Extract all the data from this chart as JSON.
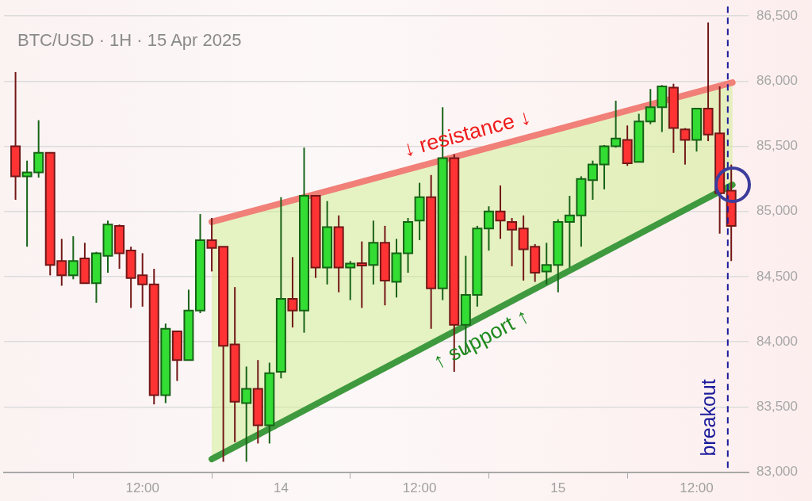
{
  "chart_data": {
    "type": "candlestick",
    "title": "BTC/USD · 1H · 15 Apr 2025",
    "x": [
      "2025-04-13T01:00",
      "2025-04-13T02:00",
      "2025-04-13T03:00",
      "2025-04-13T04:00",
      "2025-04-13T05:00",
      "2025-04-13T06:00",
      "2025-04-13T07:00",
      "2025-04-13T08:00",
      "2025-04-13T09:00",
      "2025-04-13T10:00",
      "2025-04-13T11:00",
      "2025-04-13T12:00",
      "2025-04-13T13:00",
      "2025-04-13T14:00",
      "2025-04-13T15:00",
      "2025-04-13T16:00",
      "2025-04-13T17:00",
      "2025-04-13T18:00",
      "2025-04-13T19:00",
      "2025-04-13T20:00",
      "2025-04-13T21:00",
      "2025-04-13T22:00",
      "2025-04-13T23:00",
      "2025-04-14T00:00",
      "2025-04-14T01:00",
      "2025-04-14T02:00",
      "2025-04-14T03:00",
      "2025-04-14T04:00",
      "2025-04-14T05:00",
      "2025-04-14T06:00",
      "2025-04-14T07:00",
      "2025-04-14T08:00",
      "2025-04-14T09:00",
      "2025-04-14T10:00",
      "2025-04-14T11:00",
      "2025-04-14T12:00",
      "2025-04-14T13:00",
      "2025-04-14T14:00",
      "2025-04-14T15:00",
      "2025-04-14T16:00",
      "2025-04-14T17:00",
      "2025-04-14T18:00",
      "2025-04-14T19:00",
      "2025-04-14T20:00",
      "2025-04-14T21:00",
      "2025-04-14T22:00",
      "2025-04-14T23:00",
      "2025-04-15T00:00",
      "2025-04-15T01:00",
      "2025-04-15T02:00",
      "2025-04-15T03:00",
      "2025-04-15T04:00",
      "2025-04-15T05:00",
      "2025-04-15T06:00",
      "2025-04-15T07:00",
      "2025-04-15T08:00",
      "2025-04-15T09:00",
      "2025-04-15T10:00",
      "2025-04-15T11:00",
      "2025-04-15T12:00",
      "2025-04-15T13:00",
      "2025-04-15T14:00",
      "2025-04-15T15:00"
    ],
    "ohlc": [
      [
        85500,
        86070,
        85090,
        85270
      ],
      [
        85270,
        85390,
        84730,
        85300
      ],
      [
        85300,
        85700,
        85260,
        85450
      ],
      [
        85450,
        85450,
        84510,
        84590
      ],
      [
        84620,
        84790,
        84430,
        84510
      ],
      [
        84510,
        84810,
        84480,
        84620
      ],
      [
        84640,
        84760,
        84450,
        84450
      ],
      [
        84450,
        84690,
        84300,
        84680
      ],
      [
        84660,
        84930,
        84530,
        84900
      ],
      [
        84890,
        84900,
        84560,
        84680
      ],
      [
        84700,
        84730,
        84260,
        84490
      ],
      [
        84510,
        84680,
        84270,
        84440
      ],
      [
        84440,
        84560,
        83520,
        83590
      ],
      [
        83590,
        84140,
        83530,
        84100
      ],
      [
        84080,
        84080,
        83700,
        83860
      ],
      [
        83860,
        84400,
        83860,
        84240
      ],
      [
        84240,
        84980,
        84220,
        84780
      ],
      [
        84780,
        84950,
        84540,
        84720
      ],
      [
        84730,
        84730,
        83080,
        83970
      ],
      [
        83980,
        84420,
        83230,
        83540
      ],
      [
        83530,
        83810,
        83080,
        83640
      ],
      [
        83640,
        83860,
        83220,
        83360
      ],
      [
        83360,
        83840,
        83220,
        83760
      ],
      [
        83770,
        85110,
        83720,
        84330
      ],
      [
        84330,
        84650,
        84110,
        84240
      ],
      [
        84240,
        85490,
        84070,
        85120
      ],
      [
        85120,
        85120,
        84490,
        84570
      ],
      [
        84570,
        85080,
        84440,
        84880
      ],
      [
        84880,
        84970,
        84380,
        84570
      ],
      [
        84570,
        84620,
        84320,
        84600
      ],
      [
        84600,
        84770,
        84260,
        84590
      ],
      [
        84590,
        84930,
        84440,
        84760
      ],
      [
        84760,
        84890,
        84280,
        84470
      ],
      [
        84460,
        84790,
        84340,
        84680
      ],
      [
        84680,
        84950,
        84530,
        84920
      ],
      [
        84930,
        85220,
        84780,
        85110
      ],
      [
        85110,
        85280,
        84100,
        84410
      ],
      [
        84410,
        85800,
        84320,
        85410
      ],
      [
        85410,
        85440,
        83770,
        84130
      ],
      [
        84130,
        84660,
        83910,
        84360
      ],
      [
        84360,
        84890,
        84270,
        84870
      ],
      [
        84870,
        85040,
        84700,
        85000
      ],
      [
        85000,
        85200,
        84790,
        84930
      ],
      [
        84920,
        84950,
        84580,
        84860
      ],
      [
        84870,
        84970,
        84470,
        84710
      ],
      [
        84730,
        84750,
        84460,
        84530
      ],
      [
        84540,
        84760,
        84440,
        84590
      ],
      [
        84590,
        84940,
        84380,
        84920
      ],
      [
        84920,
        85120,
        84570,
        84970
      ],
      [
        84970,
        85270,
        84730,
        85250
      ],
      [
        85240,
        85390,
        85090,
        85360
      ],
      [
        85360,
        85510,
        85170,
        85500
      ],
      [
        85500,
        85850,
        85490,
        85560
      ],
      [
        85550,
        85660,
        85350,
        85370
      ],
      [
        85380,
        85750,
        85380,
        85690
      ],
      [
        85690,
        85940,
        85670,
        85800
      ],
      [
        85800,
        85970,
        85610,
        85960
      ],
      [
        85950,
        85980,
        85450,
        85640
      ],
      [
        85630,
        85640,
        85360,
        85550
      ],
      [
        85550,
        85790,
        85460,
        85790
      ],
      [
        85790,
        86450,
        85540,
        85590
      ],
      [
        85600,
        85960,
        84830,
        85140
      ],
      [
        85160,
        85360,
        84620,
        84890
      ]
    ],
    "colors": [
      "#ff3333",
      "#33dd33",
      "#33dd33",
      "#ff3333",
      "#ff3333",
      "#33dd33",
      "#ff3333",
      "#33dd33",
      "#33dd33",
      "#ff3333",
      "#ff3333",
      "#ff3333",
      "#ff3333",
      "#33dd33",
      "#ff3333",
      "#33dd33",
      "#33dd33",
      "#ff3333",
      "#ff3333",
      "#ff3333",
      "#33dd33",
      "#ff3333",
      "#33dd33",
      "#33dd33",
      "#ff3333",
      "#33dd33",
      "#ff3333",
      "#33dd33",
      "#ff3333",
      "#33dd33",
      "#ff3333",
      "#33dd33",
      "#ff3333",
      "#33dd33",
      "#33dd33",
      "#33dd33",
      "#ff3333",
      "#33dd33",
      "#ff3333",
      "#33dd33",
      "#33dd33",
      "#33dd33",
      "#ff3333",
      "#ff3333",
      "#ff3333",
      "#ff3333",
      "#33dd33",
      "#33dd33",
      "#33dd33",
      "#33dd33",
      "#33dd33",
      "#33dd33",
      "#33dd33",
      "#ff3333",
      "#33dd33",
      "#33dd33",
      "#33dd33",
      "#ff3333",
      "#ff3333",
      "#33dd33",
      "#ff3333",
      "#ff3333",
      "#ff3333"
    ],
    "series": [
      {
        "type": "line",
        "name": "↓ resistance ↓",
        "color": "#f08078",
        "x": [
          "2025-04-13T18:00",
          "2025-04-15T15:06"
        ],
        "values": [
          84920,
          85990
        ],
        "lower": [
          83100,
          85205
        ],
        "upper": [
          84920,
          85990
        ]
      },
      {
        "type": "line",
        "name": "↑ support ↑",
        "color": "#3f9a3f",
        "x": [
          "2025-04-13T18:00",
          "2025-04-15T15:06"
        ],
        "values": [
          83100,
          85205
        ]
      }
    ],
    "xlim": [
      "2025-04-13T00:00",
      "2025-04-15T16:30"
    ],
    "xticks": [
      {
        "value": "2025-04-13T12:00",
        "label": "12:00"
      },
      {
        "value": "2025-04-14",
        "label": "14"
      },
      {
        "value": "2025-04-14T12:00",
        "label": "12:00"
      },
      {
        "value": "2025-04-15",
        "label": "15"
      },
      {
        "value": "2025-04-15T12:00",
        "label": "12:00"
      }
    ],
    "ylim": [
      83000,
      86500
    ],
    "yticks": [
      {
        "value": 83000,
        "label": "83,000"
      },
      {
        "value": 83500,
        "label": "83,500"
      },
      {
        "value": 84000,
        "label": "84,000"
      },
      {
        "value": 84500,
        "label": "84,500"
      },
      {
        "value": 85000,
        "label": "85,000"
      },
      {
        "value": 85500,
        "label": "85,500"
      },
      {
        "value": 86000,
        "label": "86,000"
      },
      {
        "value": 86500,
        "label": "86,500"
      }
    ],
    "ref_lines": [
      {
        "axis": "x",
        "value": "2025-04-15T14:42",
        "label": "breakout",
        "color": "#1a1a9a",
        "line_style": "dashed"
      }
    ],
    "grid": "y",
    "legend": false,
    "marker": "none"
  }
}
